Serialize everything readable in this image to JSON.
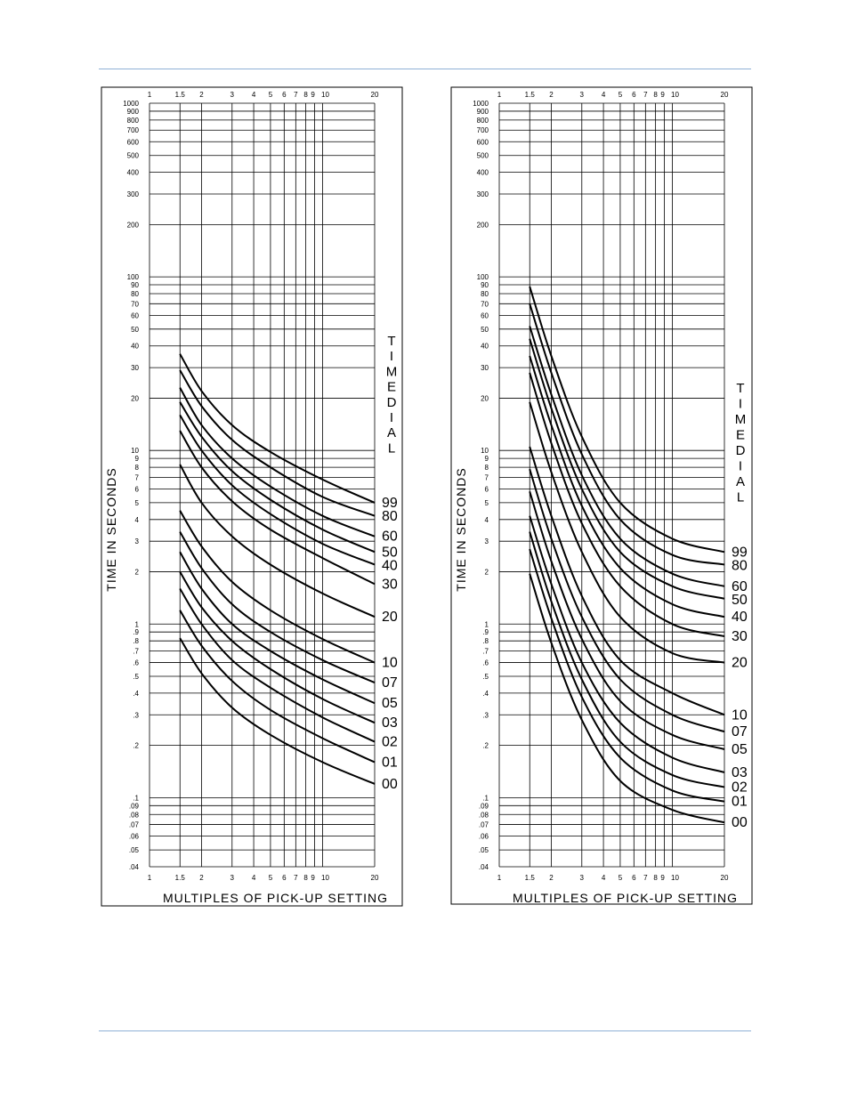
{
  "chart_data": [
    {
      "type": "line",
      "xscale": "log",
      "yscale": "log",
      "xlabel": "MULTIPLES OF PICK-UP SETTING",
      "ylabel": "TIME IN SECONDS",
      "legend_title": "TIME DIAL",
      "xlim": [
        1,
        20
      ],
      "ylim": [
        0.04,
        1000
      ],
      "x_tick_labels": [
        "1",
        "1.5",
        "2",
        "3",
        "4",
        "5",
        "6",
        "7",
        "8",
        "9",
        "10",
        "20"
      ],
      "x_ticks": [
        1,
        1.5,
        2,
        3,
        4,
        5,
        6,
        7,
        8,
        9,
        10,
        20
      ],
      "y_tick_labels": [
        "1000",
        "900",
        "800",
        "700",
        "600",
        "500",
        "400",
        "300",
        "200",
        "100",
        "90",
        "80",
        "70",
        "60",
        "50",
        "40",
        "30",
        "20",
        "10",
        "9",
        "8",
        "7",
        "6",
        "5",
        "4",
        "3",
        "2",
        "1",
        ".9",
        ".8",
        ".7",
        ".6",
        ".5",
        ".4",
        ".3",
        ".2",
        ".1",
        ".09",
        ".08",
        ".07",
        ".06",
        ".05",
        ".04"
      ],
      "y_ticks": [
        1000,
        900,
        800,
        700,
        600,
        500,
        400,
        300,
        200,
        100,
        90,
        80,
        70,
        60,
        50,
        40,
        30,
        20,
        10,
        9,
        8,
        7,
        6,
        5,
        4,
        3,
        2,
        1,
        0.9,
        0.8,
        0.7,
        0.6,
        0.5,
        0.4,
        0.3,
        0.2,
        0.1,
        0.09,
        0.08,
        0.07,
        0.06,
        0.05,
        0.04
      ],
      "grid": true,
      "x": [
        1.5,
        2,
        3,
        5,
        10,
        20
      ],
      "series": [
        {
          "name": "99",
          "values": [
            36,
            22,
            14,
            9.8,
            6.8,
            5.0
          ]
        },
        {
          "name": "80",
          "values": [
            29,
            18,
            11.5,
            8.0,
            5.4,
            4.2
          ]
        },
        {
          "name": "60",
          "values": [
            23,
            14,
            9.0,
            6.2,
            4.2,
            3.2
          ]
        },
        {
          "name": "50",
          "values": [
            19,
            12,
            7.6,
            5.2,
            3.5,
            2.6
          ]
        },
        {
          "name": "40",
          "values": [
            16,
            10,
            6.3,
            4.3,
            2.9,
            2.2
          ]
        },
        {
          "name": "30",
          "values": [
            13,
            8.0,
            5.1,
            3.5,
            2.4,
            1.7
          ]
        },
        {
          "name": "20",
          "values": [
            8.3,
            5.0,
            3.2,
            2.2,
            1.5,
            1.1
          ]
        },
        {
          "name": "10",
          "values": [
            4.5,
            2.8,
            1.75,
            1.2,
            0.82,
            0.6
          ]
        },
        {
          "name": "07",
          "values": [
            3.4,
            2.1,
            1.3,
            0.9,
            0.62,
            0.46
          ]
        },
        {
          "name": "05",
          "values": [
            2.6,
            1.6,
            1.0,
            0.7,
            0.48,
            0.35
          ]
        },
        {
          "name": "03",
          "values": [
            2.0,
            1.25,
            0.8,
            0.55,
            0.37,
            0.27
          ]
        },
        {
          "name": "02",
          "values": [
            1.6,
            1.0,
            0.62,
            0.43,
            0.29,
            0.21
          ]
        },
        {
          "name": "01",
          "values": [
            1.2,
            0.75,
            0.47,
            0.32,
            0.22,
            0.16
          ]
        },
        {
          "name": "00",
          "values": [
            0.83,
            0.52,
            0.33,
            0.23,
            0.16,
            0.12
          ]
        }
      ]
    },
    {
      "type": "line",
      "xscale": "log",
      "yscale": "log",
      "xlabel": "MULTIPLES OF PICK-UP SETTING",
      "ylabel": "TIME IN SECONDS",
      "legend_title": "TIME DIAL",
      "xlim": [
        1,
        20
      ],
      "ylim": [
        0.04,
        1000
      ],
      "x_tick_labels": [
        "1",
        "1.5",
        "2",
        "3",
        "4",
        "5",
        "6",
        "7",
        "8",
        "9",
        "10",
        "20"
      ],
      "x_ticks": [
        1,
        1.5,
        2,
        3,
        4,
        5,
        6,
        7,
        8,
        9,
        10,
        20
      ],
      "y_tick_labels": [
        "1000",
        "900",
        "800",
        "700",
        "600",
        "500",
        "400",
        "300",
        "200",
        "100",
        "90",
        "80",
        "70",
        "60",
        "50",
        "40",
        "30",
        "20",
        "10",
        "9",
        "8",
        "7",
        "6",
        "5",
        "4",
        "3",
        "2",
        "1",
        ".9",
        ".8",
        ".7",
        ".6",
        ".5",
        ".4",
        ".3",
        ".2",
        ".1",
        ".09",
        ".08",
        ".07",
        ".06",
        ".05",
        ".04"
      ],
      "y_ticks": [
        1000,
        900,
        800,
        700,
        600,
        500,
        400,
        300,
        200,
        100,
        90,
        80,
        70,
        60,
        50,
        40,
        30,
        20,
        10,
        9,
        8,
        7,
        6,
        5,
        4,
        3,
        2,
        1,
        0.9,
        0.8,
        0.7,
        0.6,
        0.5,
        0.4,
        0.3,
        0.2,
        0.1,
        0.09,
        0.08,
        0.07,
        0.06,
        0.05,
        0.04
      ],
      "grid": true,
      "x": [
        1.5,
        2,
        3,
        5,
        10,
        20
      ],
      "series": [
        {
          "name": "99",
          "values": [
            88,
            35,
            12,
            5.0,
            3.1,
            2.6
          ]
        },
        {
          "name": "80",
          "values": [
            70,
            28,
            9.5,
            4.0,
            2.5,
            2.2
          ]
        },
        {
          "name": "60",
          "values": [
            52,
            21,
            7.2,
            3.1,
            1.95,
            1.65
          ]
        },
        {
          "name": "50",
          "values": [
            44,
            17.5,
            6.0,
            2.6,
            1.65,
            1.4
          ]
        },
        {
          "name": "40",
          "values": [
            35,
            14,
            4.8,
            2.1,
            1.3,
            1.1
          ]
        },
        {
          "name": "30",
          "values": [
            28,
            11,
            3.8,
            1.65,
            1.0,
            0.85
          ]
        },
        {
          "name": "20",
          "values": [
            19,
            7.5,
            2.6,
            1.1,
            0.68,
            0.6
          ]
        },
        {
          "name": "10",
          "values": [
            10.5,
            4.2,
            1.45,
            0.62,
            0.4,
            0.3
          ]
        },
        {
          "name": "07",
          "values": [
            7.8,
            3.1,
            1.1,
            0.48,
            0.3,
            0.24
          ]
        },
        {
          "name": "05",
          "values": [
            5.8,
            2.3,
            0.82,
            0.36,
            0.23,
            0.19
          ]
        },
        {
          "name": "03",
          "values": [
            4.2,
            1.7,
            0.6,
            0.27,
            0.17,
            0.14
          ]
        },
        {
          "name": "02",
          "values": [
            3.4,
            1.35,
            0.48,
            0.21,
            0.135,
            0.115
          ]
        },
        {
          "name": "01",
          "values": [
            2.7,
            1.08,
            0.38,
            0.17,
            0.11,
            0.095
          ]
        },
        {
          "name": "00",
          "values": [
            1.95,
            0.78,
            0.28,
            0.125,
            0.085,
            0.072
          ]
        }
      ]
    }
  ]
}
